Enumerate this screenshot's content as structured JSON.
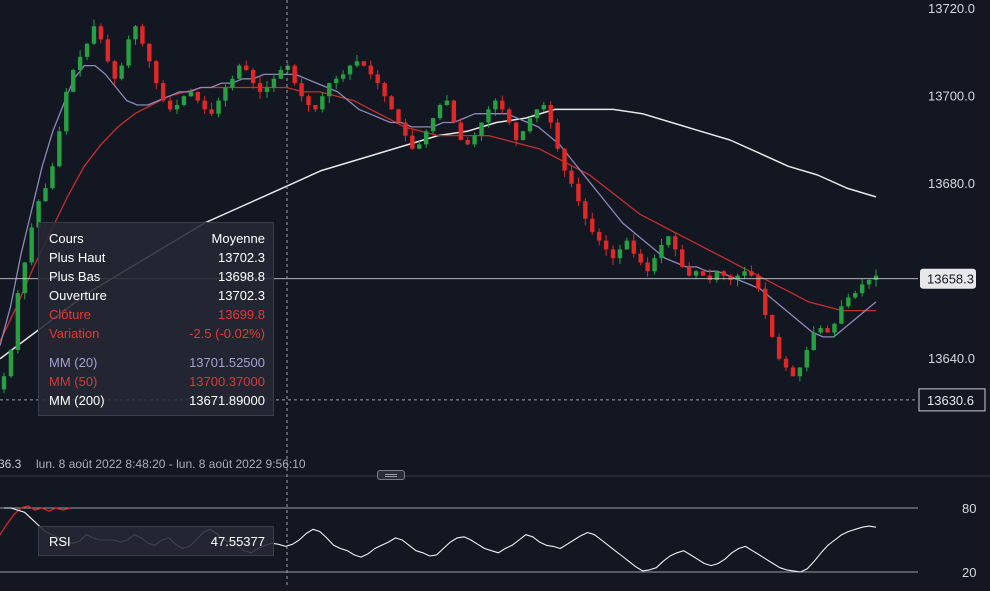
{
  "chart_data": [
    {
      "type": "candlestick",
      "y_ticks": [
        "13720.0",
        "13700.0",
        "13680.0",
        "13640.0"
      ],
      "ylim": [
        13626,
        13722
      ],
      "current_price_label": "13658.3",
      "crosshair_price_label": "13630.6",
      "date_range_value": "36.3",
      "date_range": "lun. 8 août 2022 8:48:20 - lun. 8 août 2022 9:56:10",
      "closes": [
        13636,
        13642,
        13655,
        13662,
        13670,
        13676,
        13679,
        13684,
        13692,
        13701,
        13706,
        13709,
        13712,
        13716,
        13713,
        13708,
        13704,
        13707,
        13713,
        13716,
        13712,
        13708,
        13703,
        13699,
        13697,
        13698,
        13700,
        13701,
        13699,
        13697,
        13696,
        13699,
        13702,
        13704,
        13707,
        13706,
        13703,
        13701,
        13702,
        13704,
        13706,
        13707,
        13703,
        13700,
        13698,
        13697,
        13700,
        13703,
        13704,
        13705,
        13707,
        13708,
        13707,
        13705,
        13703,
        13700,
        13697,
        13694,
        13691,
        13688,
        13689,
        13692,
        13695,
        13698,
        13699,
        13694,
        13690,
        13689,
        13691,
        13694,
        13697,
        13699,
        13697,
        13694,
        13690,
        13692,
        13695,
        13697,
        13698,
        13694,
        13688,
        13683,
        13680,
        13676,
        13672,
        13669,
        13667,
        13665,
        13663,
        13665,
        13667,
        13664,
        13662,
        13660,
        13663,
        13666,
        13668,
        13665,
        13661,
        13659,
        13660,
        13659,
        13658,
        13660,
        13659,
        13658,
        13659,
        13660,
        13659,
        13656,
        13650,
        13645,
        13640,
        13638,
        13636,
        13638,
        13642,
        13646,
        13647,
        13646,
        13648,
        13652,
        13654,
        13655,
        13657,
        13658,
        13659
      ],
      "series": [
        {
          "name": "MM (20)",
          "color": "#8f88b8",
          "values": [
            13643,
            13652,
            13664,
            13674,
            13684,
            13692,
            13698,
            13704,
            13707,
            13707,
            13705,
            13702,
            13699,
            13698,
            13698,
            13699,
            13700,
            13701,
            13701,
            13702,
            13702,
            13703,
            13703,
            13704,
            13704,
            13705,
            13705,
            13705,
            13705,
            13704,
            13703,
            13702,
            13701,
            13699,
            13697,
            13696,
            13695,
            13694,
            13694,
            13693,
            13693,
            13693,
            13694,
            13694,
            13695,
            13696,
            13696,
            13696,
            13696,
            13695,
            13694,
            13693,
            13691,
            13689,
            13686,
            13683,
            13680,
            13677,
            13674,
            13671,
            13669,
            13667,
            13665,
            13663,
            13662,
            13661,
            13661,
            13660,
            13660,
            13659,
            13658,
            13657,
            13656,
            13654,
            13652,
            13650,
            13648,
            13646,
            13645,
            13645,
            13647,
            13649,
            13651,
            13653
          ]
        },
        {
          "name": "MM (50)",
          "color": "#c62f2f",
          "values": [
            13644,
            13652,
            13661,
            13669,
            13677,
            13684,
            13689,
            13693,
            13696,
            13698,
            13700,
            13701,
            13702,
            13702,
            13702,
            13702,
            13702,
            13702,
            13701,
            13701,
            13700,
            13699,
            13697,
            13695,
            13693,
            13692,
            13691,
            13691,
            13691,
            13691,
            13690,
            13689,
            13688,
            13686,
            13684,
            13682,
            13679,
            13676,
            13673,
            13671,
            13669,
            13667,
            13665,
            13663,
            13661,
            13659,
            13657,
            13655,
            13653,
            13652,
            13651,
            13651,
            13651
          ]
        },
        {
          "name": "MM (200)",
          "color": "#e8e8e8",
          "values": [
            13640,
            13645,
            13650,
            13655,
            13659,
            13663,
            13667,
            13671,
            13674,
            13677,
            13680,
            13683,
            13685,
            13687,
            13689,
            13691,
            13692,
            13694,
            13695,
            13697,
            13697,
            13697,
            13696,
            13694,
            13692,
            13690,
            13687,
            13684,
            13682,
            13679,
            13677
          ]
        }
      ],
      "legend": {
        "header_left": "Cours",
        "header_right": "Moyenne",
        "rows": [
          {
            "label": "Plus Haut",
            "value": "13702.3",
            "style": "white"
          },
          {
            "label": "Plus Bas",
            "value": "13698.8",
            "style": "white"
          },
          {
            "label": "Ouverture",
            "value": "13702.3",
            "style": "white"
          },
          {
            "label": "Clôture",
            "value": "13699.8",
            "style": "red"
          },
          {
            "label": "Variation",
            "value": "-2.5 (-0.02%)",
            "style": "red"
          },
          {
            "label": "MM (20)",
            "value": "13701.52500",
            "style": "purple"
          },
          {
            "label": "MM (50)",
            "value": "13700.37000",
            "style": "red2"
          },
          {
            "label": "MM (200)",
            "value": "13671.89000",
            "style": "white"
          }
        ]
      }
    },
    {
      "type": "line",
      "name": "RSI",
      "value": "47.55377",
      "y_ticks": [
        "80",
        "20"
      ],
      "ylim": [
        20,
        80
      ],
      "values": [
        80,
        80,
        78,
        76,
        70,
        64,
        58,
        55,
        52,
        48,
        47,
        49,
        55,
        52,
        50,
        50,
        50,
        48,
        50,
        55,
        52,
        47,
        45,
        50,
        52,
        46,
        42,
        44,
        50,
        57,
        60,
        56,
        50,
        48,
        45,
        40,
        38,
        42,
        45,
        47,
        46,
        44,
        46,
        50,
        56,
        60,
        58,
        52,
        45,
        42,
        40,
        36,
        34,
        37,
        42,
        45,
        48,
        52,
        50,
        45,
        40,
        38,
        35,
        36,
        42,
        48,
        52,
        53,
        50,
        46,
        42,
        40,
        38,
        42,
        45,
        50,
        55,
        53,
        48,
        45,
        44,
        42,
        46,
        50,
        54,
        57,
        55,
        50,
        45,
        40,
        35,
        30,
        25,
        21,
        22,
        24,
        30,
        35,
        38,
        40,
        36,
        32,
        28,
        26,
        28,
        32,
        38,
        42,
        44,
        40,
        36,
        32,
        28,
        24,
        22,
        21,
        20,
        23,
        30,
        38,
        45,
        50,
        55,
        58,
        60,
        62,
        63,
        62
      ],
      "prev_values": [
        55,
        65,
        74,
        80,
        82,
        78,
        80,
        77,
        80,
        78,
        80
      ]
    }
  ],
  "colors": {
    "background": "#131722",
    "grid": "#2a2e39",
    "up": "#26a043",
    "down": "#e02828",
    "label_bg": "#e8e8ea",
    "line_bright": "#f0f0f0"
  }
}
